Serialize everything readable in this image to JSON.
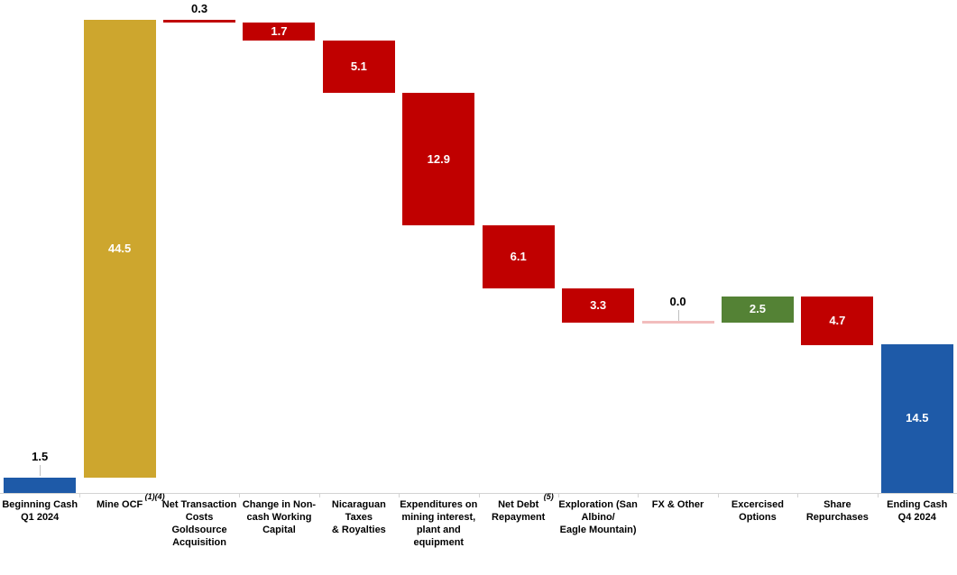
{
  "chart_data": {
    "type": "bar",
    "subtype": "waterfall",
    "title": "",
    "xlabel": "",
    "ylabel": "",
    "ylim": [
      0,
      46
    ],
    "grid": false,
    "legend": "none",
    "baseline_value": 0,
    "colors": {
      "total": "#1E5AA8",
      "increase_ocf": "#CDA62E",
      "increase": "#548235",
      "decrease": "#C00000",
      "zero": "#F2BDBD",
      "axis": "#D4D4D4",
      "leader": "#BFBFBF",
      "label_inside": "#FFFFFF",
      "label_outside": "#000000"
    },
    "categories": [
      {
        "label": "Beginning Cash\nQ1 2024",
        "sup": "",
        "value": 1.5,
        "display": "1.5",
        "kind": "absolute",
        "color": "#1E5AA8",
        "label_pos": "above",
        "leader": true
      },
      {
        "label": "Mine OCF",
        "sup": "(1)(4)",
        "value": 44.5,
        "display": "44.5",
        "kind": "increase",
        "color": "#CDA62E",
        "label_pos": "inside",
        "leader": false
      },
      {
        "label": "Net Transaction\nCosts Goldsource\nAcquisition",
        "sup": "",
        "value": -0.3,
        "display": "0.3",
        "kind": "decrease",
        "color": "#C00000",
        "label_pos": "above",
        "leader": false
      },
      {
        "label": "Change in Non-\ncash Working\nCapital",
        "sup": "",
        "value": -1.7,
        "display": "1.7",
        "kind": "decrease",
        "color": "#C00000",
        "label_pos": "inside",
        "leader": false
      },
      {
        "label": "Nicaraguan Taxes\n& Royalties",
        "sup": "",
        "value": -5.1,
        "display": "5.1",
        "kind": "decrease",
        "color": "#C00000",
        "label_pos": "inside",
        "leader": false
      },
      {
        "label": "Expenditures on\nmining interest,\nplant and\nequipment",
        "sup": "",
        "value": -12.9,
        "display": "12.9",
        "kind": "decrease",
        "color": "#C00000",
        "label_pos": "inside",
        "leader": false
      },
      {
        "label": "Net Debt\nRepayment",
        "sup": "(5)",
        "value": -6.1,
        "display": "6.1",
        "kind": "decrease",
        "color": "#C00000",
        "label_pos": "inside",
        "leader": false
      },
      {
        "label": "Exploration (San\nAlbino/\nEagle Mountain)",
        "sup": "",
        "value": -3.3,
        "display": "3.3",
        "kind": "decrease",
        "color": "#C00000",
        "label_pos": "inside",
        "leader": false
      },
      {
        "label": "FX & Other",
        "sup": "",
        "value": 0.0,
        "display": "0.0",
        "kind": "zero",
        "color": "#F2BDBD",
        "label_pos": "above",
        "leader": true
      },
      {
        "label": "Excercised\nOptions",
        "sup": "",
        "value": 2.5,
        "display": "2.5",
        "kind": "increase",
        "color": "#548235",
        "label_pos": "inside",
        "leader": false
      },
      {
        "label": "Share\nRepurchases",
        "sup": "",
        "value": -4.7,
        "display": "4.7",
        "kind": "decrease",
        "color": "#C00000",
        "label_pos": "inside",
        "leader": false
      },
      {
        "label": "Ending Cash\nQ4 2024",
        "sup": "",
        "value": 14.5,
        "display": "14.5",
        "kind": "absolute",
        "color": "#1E5AA8",
        "label_pos": "inside",
        "leader": false
      }
    ]
  }
}
